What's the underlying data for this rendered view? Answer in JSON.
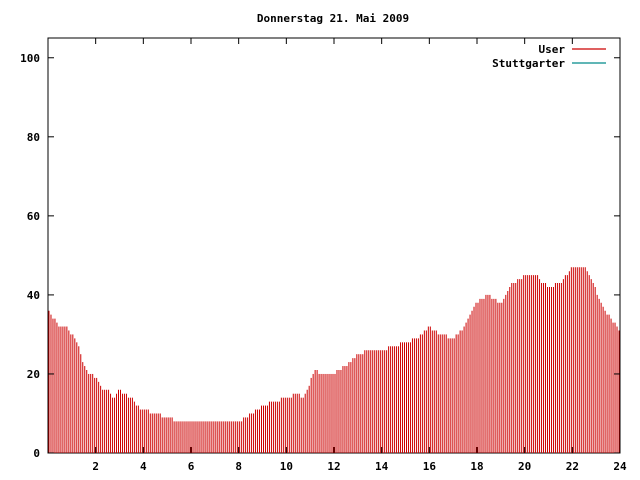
{
  "chart_data": {
    "type": "bar",
    "title": "Donnerstag 21. Mai 2009",
    "xlabel": "",
    "ylabel": "",
    "xlim": [
      0,
      24
    ],
    "ylim": [
      0,
      105
    ],
    "x_ticks": [
      "2",
      "4",
      "6",
      "8",
      "10",
      "12",
      "14",
      "16",
      "18",
      "20",
      "22",
      "24"
    ],
    "y_ticks": [
      "0",
      "20",
      "40",
      "60",
      "80",
      "100"
    ],
    "grid": false,
    "legend_placement": "top-right",
    "series": [
      {
        "name": "User",
        "color": "#cc0000",
        "hourly_profile": [
          [
            0.0,
            36
          ],
          [
            0.25,
            34
          ],
          [
            0.5,
            32
          ],
          [
            0.75,
            32
          ],
          [
            1.0,
            30
          ],
          [
            1.25,
            28
          ],
          [
            1.5,
            22
          ],
          [
            1.75,
            20
          ],
          [
            2.0,
            19
          ],
          [
            2.25,
            16
          ],
          [
            2.5,
            16
          ],
          [
            2.75,
            14
          ],
          [
            3.0,
            16
          ],
          [
            3.25,
            15
          ],
          [
            3.5,
            14
          ],
          [
            3.75,
            12
          ],
          [
            4.0,
            11
          ],
          [
            4.5,
            10
          ],
          [
            5.0,
            9
          ],
          [
            5.5,
            8
          ],
          [
            6.0,
            8
          ],
          [
            7.0,
            8
          ],
          [
            7.5,
            8
          ],
          [
            8.0,
            8
          ],
          [
            8.5,
            10
          ],
          [
            9.0,
            12
          ],
          [
            9.5,
            13
          ],
          [
            10.0,
            14
          ],
          [
            10.5,
            15
          ],
          [
            10.75,
            14
          ],
          [
            11.0,
            18
          ],
          [
            11.25,
            21
          ],
          [
            11.5,
            20
          ],
          [
            12.0,
            20
          ],
          [
            12.5,
            22
          ],
          [
            13.0,
            25
          ],
          [
            13.5,
            26
          ],
          [
            14.0,
            26
          ],
          [
            14.5,
            27
          ],
          [
            15.0,
            28
          ],
          [
            15.5,
            29
          ],
          [
            16.0,
            32
          ],
          [
            16.5,
            30
          ],
          [
            17.0,
            29
          ],
          [
            17.5,
            32
          ],
          [
            17.75,
            35
          ],
          [
            18.0,
            38
          ],
          [
            18.5,
            40
          ],
          [
            19.0,
            38
          ],
          [
            19.5,
            43
          ],
          [
            20.0,
            45
          ],
          [
            20.5,
            45
          ],
          [
            20.75,
            43
          ],
          [
            21.0,
            42
          ],
          [
            21.5,
            43
          ],
          [
            22.0,
            47
          ],
          [
            22.5,
            47
          ],
          [
            23.0,
            41
          ],
          [
            23.25,
            37
          ],
          [
            23.5,
            35
          ],
          [
            23.75,
            33
          ],
          [
            24.0,
            30
          ]
        ]
      },
      {
        "name": "Stuttgarter",
        "color": "#008b8b",
        "hourly_profile": []
      }
    ]
  }
}
